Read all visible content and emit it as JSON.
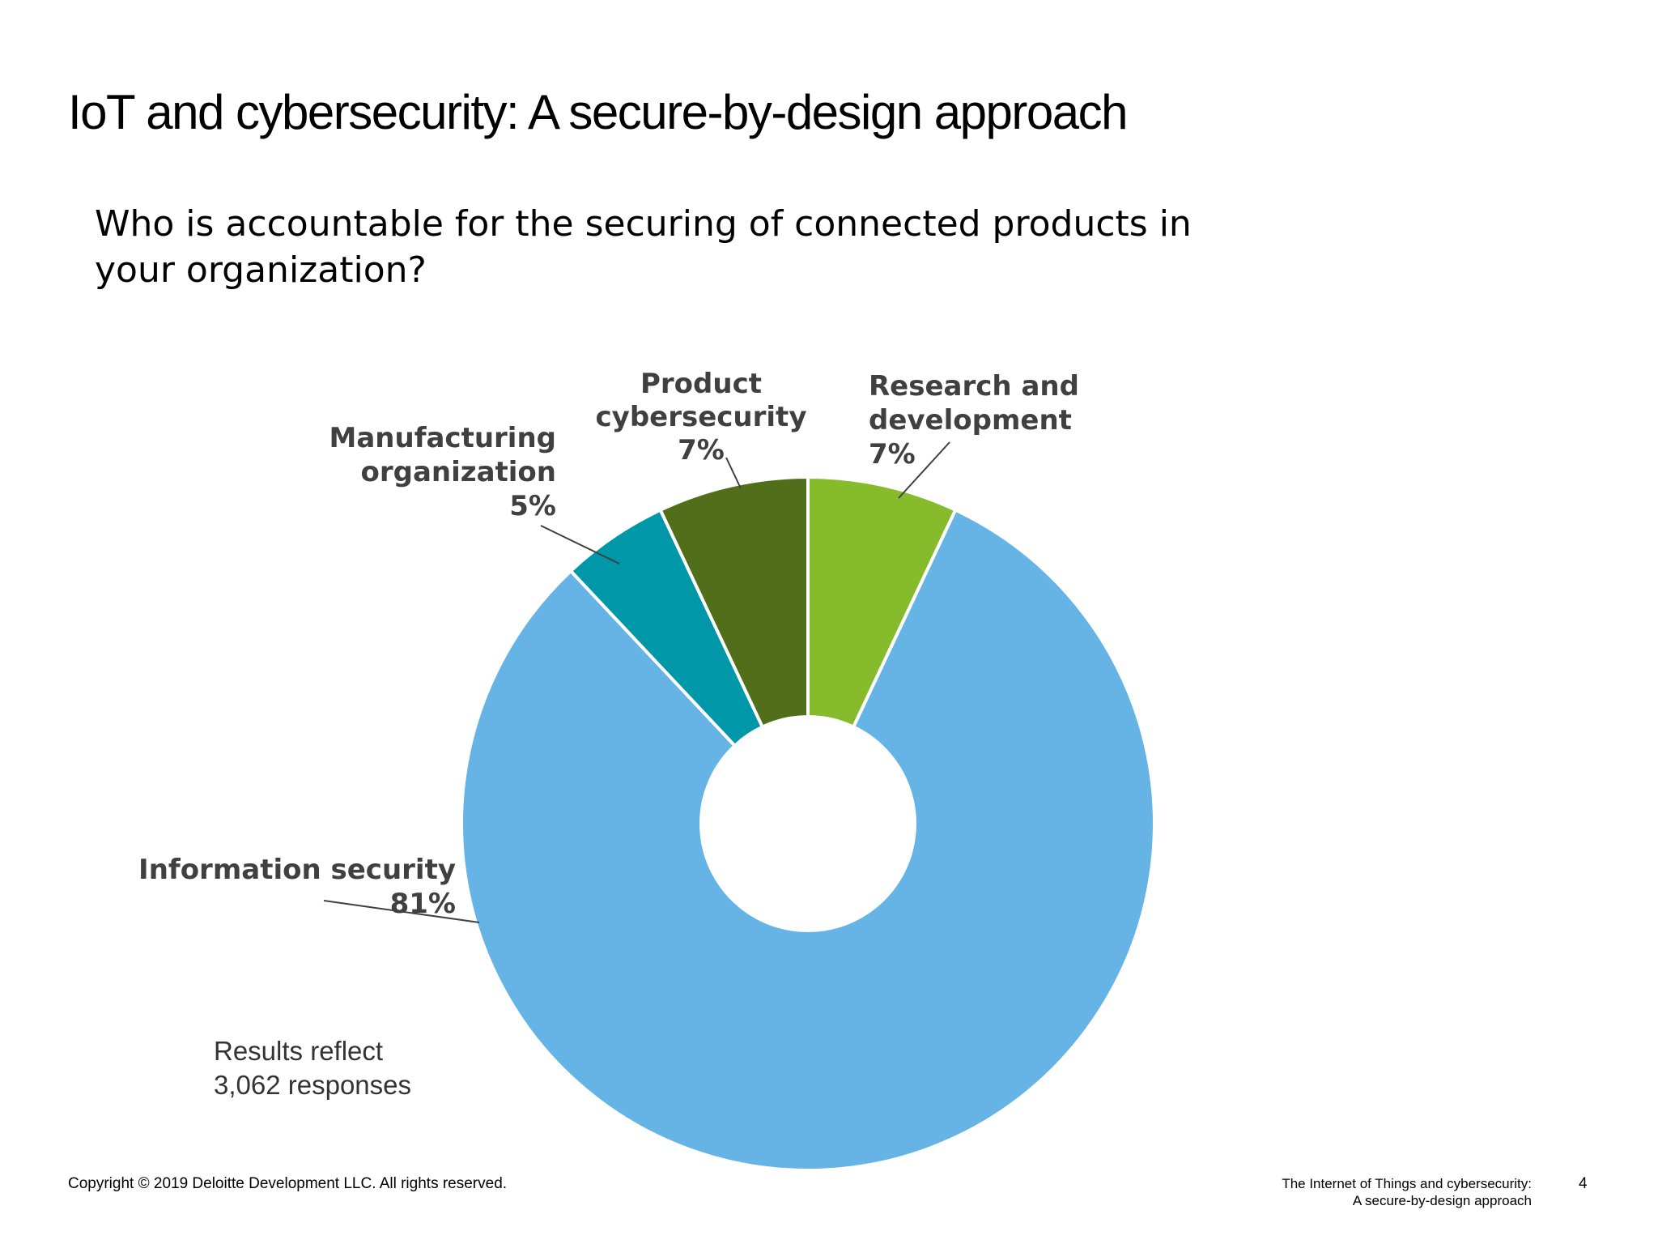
{
  "slide": {
    "title": "IoT and cybersecurity: A secure-by-design approach",
    "question_line1": "Who is accountable for the securing of connected products in",
    "question_line2": "your organization?"
  },
  "note": {
    "line1": "Results reflect",
    "line2": "3,062 responses"
  },
  "footer": {
    "copyright": "Copyright © 2019 Deloitte Development LLC. All rights reserved.",
    "doc_line1": "The Internet of Things and cybersecurity:",
    "doc_line2": "A secure-by-design approach",
    "page_number": "4"
  },
  "chart_data": {
    "type": "pie",
    "donut": true,
    "title": "",
    "start": "12 o'clock",
    "direction": "clockwise",
    "slices": [
      {
        "label_lines": [
          "Research and",
          "development",
          "7%"
        ],
        "value": 7,
        "color": "#86bc2b"
      },
      {
        "label_lines": [
          "Information security",
          "81%"
        ],
        "value": 81,
        "color": "#66b3e5"
      },
      {
        "label_lines": [
          "Manufacturing",
          "organization",
          "5%"
        ],
        "value": 5,
        "color": "#0097a9"
      },
      {
        "label_lines": [
          "Product",
          "cybersecurity",
          "7%"
        ],
        "value": 7,
        "color": "#516f1b"
      }
    ]
  }
}
